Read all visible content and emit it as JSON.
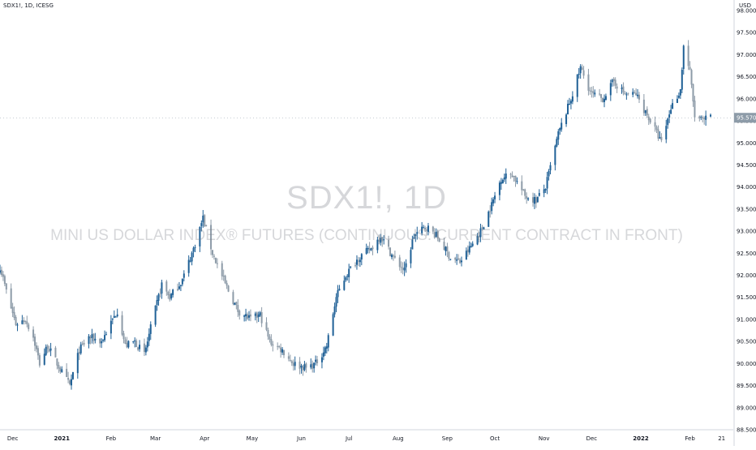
{
  "header": {
    "symbol_line": "SDX1!, 1D, ICESG",
    "currency": "USD"
  },
  "watermark": {
    "symbol": "SDX1!, 1D",
    "description": "MINI US DOLLAR INDEX® FUTURES (CONTINUOUS: CURRENT CONTRACT IN FRONT)"
  },
  "colors": {
    "up": "#1f6096",
    "down": "#8d9ba8",
    "axis_text": "#131722",
    "axis_line": "#d1d4dc",
    "price_tag_bg": "#8d9ba8"
  },
  "chart_data": {
    "type": "ohlc",
    "ylim": [
      88.5,
      98.0
    ],
    "y_ticks": [
      "98.000",
      "97.500",
      "97.000",
      "96.500",
      "96.000",
      "95.500",
      "95.000",
      "94.500",
      "94.000",
      "93.500",
      "93.000",
      "92.500",
      "92.000",
      "91.500",
      "91.000",
      "90.500",
      "90.000",
      "89.500",
      "89.000",
      "88.500"
    ],
    "x_ticks": [
      "Dec",
      "2021",
      "Feb",
      "Mar",
      "Apr",
      "May",
      "Jun",
      "Jul",
      "Aug",
      "Sep",
      "Oct",
      "Nov",
      "Dec",
      "2022",
      "Feb",
      "21"
    ],
    "bold_x_ticks": [
      "2021",
      "2022"
    ],
    "last_price": "95.570",
    "anchors": [
      [
        "2020-11-23",
        92.2
      ],
      [
        "2020-11-28",
        91.5
      ],
      [
        "2020-12-03",
        90.9
      ],
      [
        "2020-12-09",
        91.0
      ],
      [
        "2020-12-14",
        90.6
      ],
      [
        "2020-12-18",
        90.0
      ],
      [
        "2020-12-23",
        90.4
      ],
      [
        "2021-01-01",
        89.8
      ],
      [
        "2021-01-06",
        89.5
      ],
      [
        "2021-01-12",
        90.3
      ],
      [
        "2021-01-18",
        90.6
      ],
      [
        "2021-01-26",
        90.5
      ],
      [
        "2021-02-05",
        91.2
      ],
      [
        "2021-02-10",
        90.4
      ],
      [
        "2021-02-16",
        90.5
      ],
      [
        "2021-02-22",
        90.2
      ],
      [
        "2021-02-26",
        90.8
      ],
      [
        "2021-03-05",
        91.8
      ],
      [
        "2021-03-10",
        91.5
      ],
      [
        "2021-03-18",
        91.9
      ],
      [
        "2021-03-25",
        92.6
      ],
      [
        "2021-03-31",
        93.3
      ],
      [
        "2021-04-06",
        92.5
      ],
      [
        "2021-04-14",
        91.8
      ],
      [
        "2021-04-22",
        91.2
      ],
      [
        "2021-04-30",
        91.0
      ],
      [
        "2021-05-06",
        91.1
      ],
      [
        "2021-05-12",
        90.5
      ],
      [
        "2021-05-20",
        90.3
      ],
      [
        "2021-05-27",
        90.0
      ],
      [
        "2021-06-04",
        89.9
      ],
      [
        "2021-06-10",
        90.0
      ],
      [
        "2021-06-17",
        90.4
      ],
      [
        "2021-06-23",
        91.5
      ],
      [
        "2021-06-29",
        92.0
      ],
      [
        "2021-07-07",
        92.4
      ],
      [
        "2021-07-15",
        92.6
      ],
      [
        "2021-07-21",
        92.9
      ],
      [
        "2021-07-29",
        92.4
      ],
      [
        "2021-08-05",
        92.1
      ],
      [
        "2021-08-11",
        92.9
      ],
      [
        "2021-08-19",
        93.1
      ],
      [
        "2021-08-25",
        92.9
      ],
      [
        "2021-09-03",
        92.4
      ],
      [
        "2021-09-09",
        92.3
      ],
      [
        "2021-09-15",
        92.6
      ],
      [
        "2021-09-22",
        93.0
      ],
      [
        "2021-09-29",
        93.6
      ],
      [
        "2021-10-05",
        94.2
      ],
      [
        "2021-10-12",
        94.3
      ],
      [
        "2021-10-20",
        93.8
      ],
      [
        "2021-10-27",
        93.7
      ],
      [
        "2021-11-02",
        94.0
      ],
      [
        "2021-11-10",
        95.2
      ],
      [
        "2021-11-18",
        96.0
      ],
      [
        "2021-11-24",
        96.7
      ],
      [
        "2021-12-01",
        96.1
      ],
      [
        "2021-12-08",
        96.0
      ],
      [
        "2021-12-15",
        96.4
      ],
      [
        "2021-12-22",
        96.1
      ],
      [
        "2021-12-29",
        96.1
      ],
      [
        "2022-01-04",
        95.7
      ],
      [
        "2022-01-10",
        95.3
      ],
      [
        "2022-01-14",
        95.0
      ],
      [
        "2022-01-20",
        95.8
      ],
      [
        "2022-01-26",
        96.2
      ],
      [
        "2022-01-28",
        97.2
      ],
      [
        "2022-02-01",
        96.6
      ],
      [
        "2022-02-04",
        95.6
      ],
      [
        "2022-02-09",
        95.5
      ],
      [
        "2022-02-13",
        95.57
      ]
    ]
  }
}
